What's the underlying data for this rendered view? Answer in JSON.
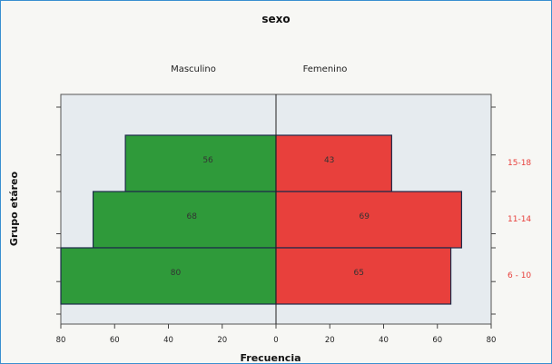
{
  "chart_data": {
    "type": "bar",
    "orientation": "horizontal",
    "subtype": "population-pyramid",
    "title": "sexo",
    "xlabel": "Frecuencia",
    "ylabel": "Grupo etáreo",
    "categories": [
      "15-18",
      "11-14",
      "6 - 10"
    ],
    "series": [
      {
        "name": "Masculino",
        "values": [
          56,
          68,
          80
        ],
        "color": "#2f9a3a",
        "side": "left"
      },
      {
        "name": "Femenino",
        "values": [
          43,
          69,
          65
        ],
        "color": "#e8403c",
        "side": "right"
      }
    ],
    "xlim": [
      -80,
      80
    ],
    "xticks": [
      -80,
      -60,
      -40,
      -20,
      0,
      20,
      40,
      60,
      80
    ],
    "xtick_labels": [
      "80",
      "60",
      "40",
      "20",
      "0",
      "20",
      "40",
      "60",
      "80"
    ],
    "category_label_color": "#e8403c",
    "grid": false
  }
}
